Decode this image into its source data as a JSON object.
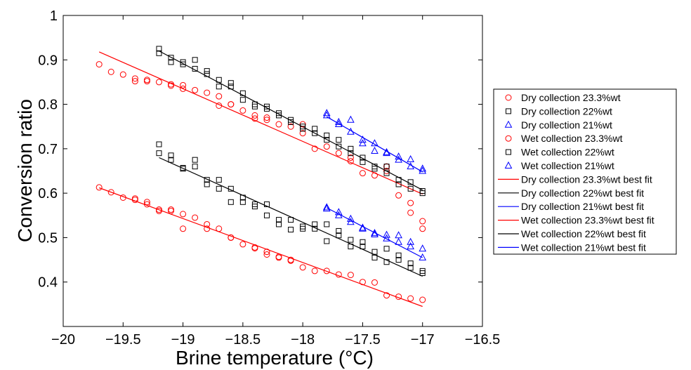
{
  "chart_data": {
    "type": "scatter",
    "xlabel": "Brine temperature (°C)",
    "ylabel": "Conversion ratio",
    "xlim": [
      -20,
      -16.5
    ],
    "ylim": [
      0.3,
      1.0
    ],
    "x_ticks": [
      -20,
      -19.5,
      -19,
      -18.5,
      -18,
      -17.5,
      -17,
      -16.5
    ],
    "x_tick_labels": [
      "−20",
      "−19.5",
      "−19",
      "−18.5",
      "−18",
      "−17.5",
      "−17",
      "−16.5"
    ],
    "y_ticks": [
      0.4,
      0.5,
      0.6,
      0.7,
      0.8,
      0.9,
      1.0
    ],
    "y_tick_labels": [
      "0.4",
      "0.5",
      "0.6",
      "0.7",
      "0.8",
      "0.9",
      "1"
    ],
    "grid": false,
    "legend_position": "outside-right",
    "series": [
      {
        "name": "Dry collection 23.3%wt",
        "marker": "circle",
        "color": "#ff0000",
        "points": [
          [
            -19.7,
            0.89
          ],
          [
            -19.6,
            0.873
          ],
          [
            -19.5,
            0.867
          ],
          [
            -19.4,
            0.858
          ],
          [
            -19.4,
            0.852
          ],
          [
            -19.3,
            0.855
          ],
          [
            -19.3,
            0.852
          ],
          [
            -19.2,
            0.85
          ],
          [
            -19.1,
            0.845
          ],
          [
            -19.1,
            0.842
          ],
          [
            -19.0,
            0.843
          ],
          [
            -19.0,
            0.835
          ],
          [
            -18.9,
            0.832
          ],
          [
            -18.8,
            0.826
          ],
          [
            -18.7,
            0.818
          ],
          [
            -18.7,
            0.797
          ],
          [
            -18.6,
            0.8
          ],
          [
            -18.6,
            0.8
          ],
          [
            -18.5,
            0.786
          ],
          [
            -18.4,
            0.775
          ],
          [
            -18.4,
            0.768
          ],
          [
            -18.3,
            0.77
          ],
          [
            -18.3,
            0.765
          ],
          [
            -18.2,
            0.755
          ],
          [
            -18.1,
            0.75
          ],
          [
            -18.0,
            0.755
          ],
          [
            -18.0,
            0.735
          ],
          [
            -17.9,
            0.7
          ],
          [
            -17.8,
            0.705
          ],
          [
            -17.7,
            0.69
          ],
          [
            -17.6,
            0.68
          ],
          [
            -17.6,
            0.672
          ],
          [
            -17.5,
            0.645
          ],
          [
            -17.4,
            0.64
          ],
          [
            -17.3,
            0.66
          ],
          [
            -17.3,
            0.65
          ],
          [
            -17.2,
            0.595
          ],
          [
            -17.1,
            0.578
          ],
          [
            -17.1,
            0.556
          ],
          [
            -17.0,
            0.537
          ],
          [
            -17.0,
            0.52
          ]
        ]
      },
      {
        "name": "Dry collection 22%wt",
        "marker": "square",
        "color": "#000000",
        "points": [
          [
            -19.2,
            0.925
          ],
          [
            -19.2,
            0.915
          ],
          [
            -19.1,
            0.905
          ],
          [
            -19.1,
            0.895
          ],
          [
            -19.0,
            0.89
          ],
          [
            -19.0,
            0.895
          ],
          [
            -18.9,
            0.9
          ],
          [
            -18.9,
            0.88
          ],
          [
            -18.8,
            0.875
          ],
          [
            -18.8,
            0.868
          ],
          [
            -18.7,
            0.855
          ],
          [
            -18.7,
            0.84
          ],
          [
            -18.6,
            0.848
          ],
          [
            -18.6,
            0.84
          ],
          [
            -18.5,
            0.825
          ],
          [
            -18.5,
            0.81
          ],
          [
            -18.4,
            0.8
          ],
          [
            -18.4,
            0.795
          ],
          [
            -18.3,
            0.795
          ],
          [
            -18.3,
            0.79
          ],
          [
            -18.2,
            0.78
          ],
          [
            -18.2,
            0.775
          ],
          [
            -18.1,
            0.765
          ],
          [
            -18.1,
            0.76
          ],
          [
            -18.0,
            0.75
          ],
          [
            -18.0,
            0.745
          ],
          [
            -17.9,
            0.745
          ],
          [
            -17.9,
            0.735
          ],
          [
            -17.8,
            0.72
          ],
          [
            -17.8,
            0.73
          ],
          [
            -17.7,
            0.72
          ],
          [
            -17.7,
            0.705
          ],
          [
            -17.6,
            0.7
          ],
          [
            -17.6,
            0.69
          ],
          [
            -17.5,
            0.67
          ],
          [
            -17.5,
            0.68
          ],
          [
            -17.4,
            0.66
          ],
          [
            -17.4,
            0.655
          ],
          [
            -17.3,
            0.66
          ],
          [
            -17.3,
            0.645
          ],
          [
            -17.2,
            0.63
          ],
          [
            -17.2,
            0.62
          ],
          [
            -17.1,
            0.625
          ],
          [
            -17.1,
            0.61
          ],
          [
            -17.0,
            0.605
          ],
          [
            -17.0,
            0.6
          ]
        ]
      },
      {
        "name": "Dry collection 21%wt",
        "marker": "triangle",
        "color": "#0000ff",
        "points": [
          [
            -17.8,
            0.78
          ],
          [
            -17.8,
            0.775
          ],
          [
            -17.7,
            0.76
          ],
          [
            -17.7,
            0.755
          ],
          [
            -17.6,
            0.765
          ],
          [
            -17.6,
            0.738
          ],
          [
            -17.5,
            0.72
          ],
          [
            -17.5,
            0.712
          ],
          [
            -17.4,
            0.712
          ],
          [
            -17.4,
            0.695
          ],
          [
            -17.3,
            0.69
          ],
          [
            -17.3,
            0.692
          ],
          [
            -17.2,
            0.682
          ],
          [
            -17.2,
            0.675
          ],
          [
            -17.1,
            0.676
          ],
          [
            -17.1,
            0.66
          ],
          [
            -17.0,
            0.655
          ],
          [
            -17.0,
            0.65
          ]
        ]
      },
      {
        "name": "Wet collection 23.3%wt",
        "marker": "circle",
        "color": "#ff0000",
        "points": [
          [
            -19.7,
            0.613
          ],
          [
            -19.6,
            0.602
          ],
          [
            -19.5,
            0.59
          ],
          [
            -19.4,
            0.588
          ],
          [
            -19.4,
            0.585
          ],
          [
            -19.3,
            0.58
          ],
          [
            -19.3,
            0.575
          ],
          [
            -19.2,
            0.563
          ],
          [
            -19.2,
            0.56
          ],
          [
            -19.1,
            0.56
          ],
          [
            -19.1,
            0.563
          ],
          [
            -19.0,
            0.553
          ],
          [
            -19.0,
            0.52
          ],
          [
            -18.9,
            0.545
          ],
          [
            -18.8,
            0.53
          ],
          [
            -18.8,
            0.52
          ],
          [
            -18.7,
            0.52
          ],
          [
            -18.6,
            0.5
          ],
          [
            -18.6,
            0.5
          ],
          [
            -18.5,
            0.485
          ],
          [
            -18.4,
            0.478
          ],
          [
            -18.4,
            0.476
          ],
          [
            -18.3,
            0.468
          ],
          [
            -18.3,
            0.462
          ],
          [
            -18.2,
            0.457
          ],
          [
            -18.2,
            0.455
          ],
          [
            -18.1,
            0.45
          ],
          [
            -18.1,
            0.448
          ],
          [
            -18.0,
            0.433
          ],
          [
            -17.9,
            0.425
          ],
          [
            -17.8,
            0.425
          ],
          [
            -17.7,
            0.417
          ],
          [
            -17.6,
            0.416
          ],
          [
            -17.5,
            0.4
          ],
          [
            -17.4,
            0.399
          ],
          [
            -17.3,
            0.37
          ],
          [
            -17.2,
            0.367
          ],
          [
            -17.1,
            0.363
          ],
          [
            -17.0,
            0.36
          ]
        ]
      },
      {
        "name": "Wet collection 22%wt",
        "marker": "square",
        "color": "#000000",
        "points": [
          [
            -19.2,
            0.71
          ],
          [
            -19.2,
            0.69
          ],
          [
            -19.1,
            0.685
          ],
          [
            -19.1,
            0.675
          ],
          [
            -19.0,
            0.657
          ],
          [
            -19.0,
            0.655
          ],
          [
            -18.9,
            0.675
          ],
          [
            -18.9,
            0.66
          ],
          [
            -18.8,
            0.63
          ],
          [
            -18.8,
            0.62
          ],
          [
            -18.7,
            0.63
          ],
          [
            -18.7,
            0.61
          ],
          [
            -18.6,
            0.61
          ],
          [
            -18.6,
            0.58
          ],
          [
            -18.5,
            0.59
          ],
          [
            -18.5,
            0.58
          ],
          [
            -18.4,
            0.575
          ],
          [
            -18.4,
            0.57
          ],
          [
            -18.3,
            0.575
          ],
          [
            -18.3,
            0.55
          ],
          [
            -18.2,
            0.54
          ],
          [
            -18.2,
            0.53
          ],
          [
            -18.1,
            0.54
          ],
          [
            -18.1,
            0.518
          ],
          [
            -18.0,
            0.525
          ],
          [
            -18.0,
            0.52
          ],
          [
            -17.9,
            0.53
          ],
          [
            -17.9,
            0.52
          ],
          [
            -17.8,
            0.53
          ],
          [
            -17.8,
            0.492
          ],
          [
            -17.7,
            0.515
          ],
          [
            -17.7,
            0.505
          ],
          [
            -17.6,
            0.495
          ],
          [
            -17.6,
            0.48
          ],
          [
            -17.5,
            0.49
          ],
          [
            -17.5,
            0.48
          ],
          [
            -17.4,
            0.468
          ],
          [
            -17.4,
            0.455
          ],
          [
            -17.3,
            0.475
          ],
          [
            -17.3,
            0.445
          ],
          [
            -17.2,
            0.46
          ],
          [
            -17.2,
            0.45
          ],
          [
            -17.1,
            0.442
          ],
          [
            -17.1,
            0.432
          ],
          [
            -17.0,
            0.425
          ],
          [
            -17.0,
            0.42
          ]
        ]
      },
      {
        "name": "Wet collection 21%wt",
        "marker": "triangle",
        "color": "#0000ff",
        "points": [
          [
            -17.8,
            0.568
          ],
          [
            -17.8,
            0.565
          ],
          [
            -17.7,
            0.557
          ],
          [
            -17.7,
            0.55
          ],
          [
            -17.6,
            0.542
          ],
          [
            -17.6,
            0.535
          ],
          [
            -17.5,
            0.522
          ],
          [
            -17.5,
            0.52
          ],
          [
            -17.4,
            0.51
          ],
          [
            -17.4,
            0.507
          ],
          [
            -17.3,
            0.506
          ],
          [
            -17.3,
            0.498
          ],
          [
            -17.2,
            0.505
          ],
          [
            -17.2,
            0.49
          ],
          [
            -17.1,
            0.49
          ],
          [
            -17.1,
            0.48
          ],
          [
            -17.0,
            0.475
          ],
          [
            -17.0,
            0.455
          ]
        ]
      },
      {
        "name": "Dry collection 23.3%wt best fit",
        "marker": "line",
        "color": "#ff0000",
        "points": [
          [
            -19.7,
            0.918
          ],
          [
            -17.0,
            0.598
          ]
        ]
      },
      {
        "name": "Dry collection 22%wt best fit",
        "marker": "line",
        "color": "#000000",
        "points": [
          [
            -19.2,
            0.92
          ],
          [
            -17.0,
            0.607
          ]
        ]
      },
      {
        "name": "Dry collection 21%wt best fit",
        "marker": "line",
        "color": "#0000ff",
        "points": [
          [
            -17.8,
            0.772
          ],
          [
            -17.0,
            0.648
          ]
        ]
      },
      {
        "name": "Wet collection 23.3%wt best fit",
        "marker": "line",
        "color": "#ff0000",
        "points": [
          [
            -19.7,
            0.612
          ],
          [
            -17.0,
            0.345
          ]
        ]
      },
      {
        "name": "Wet collection 22%wt best fit",
        "marker": "line",
        "color": "#000000",
        "points": [
          [
            -19.2,
            0.68
          ],
          [
            -17.0,
            0.413
          ]
        ]
      },
      {
        "name": "Wet collection 21%wt best fit",
        "marker": "line",
        "color": "#0000ff",
        "points": [
          [
            -17.8,
            0.567
          ],
          [
            -17.0,
            0.455
          ]
        ]
      }
    ]
  }
}
